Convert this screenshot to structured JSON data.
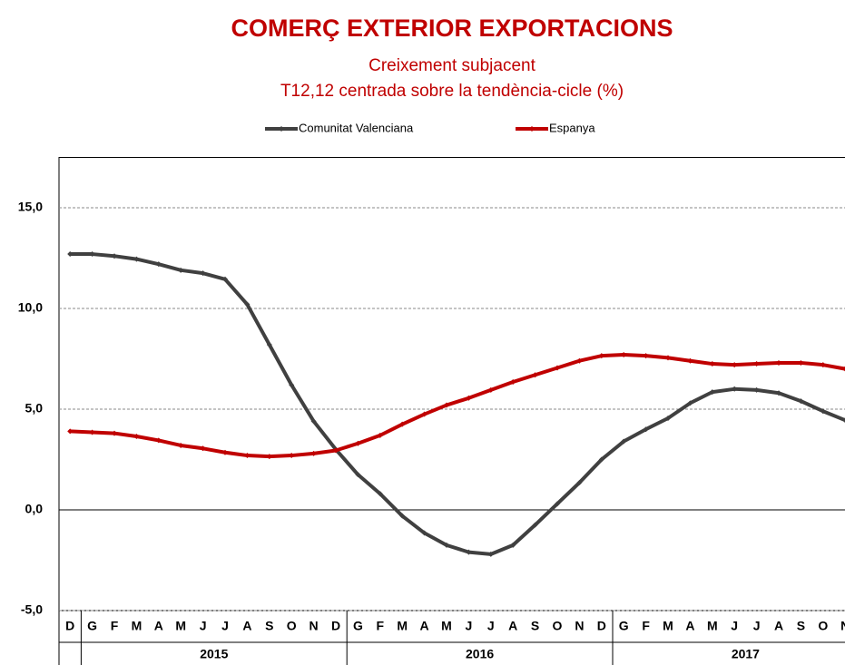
{
  "chart_data": {
    "type": "line",
    "title": "COMERÇ EXTERIOR EXPORTACIONS",
    "subtitle": [
      "Creixement  subjacent",
      "T12,12 centrada sobre la tendència-cicle (%)"
    ],
    "categories": [
      "D",
      "G",
      "F",
      "M",
      "A",
      "M",
      "J",
      "J",
      "A",
      "S",
      "O",
      "N",
      "D",
      "G",
      "F",
      "M",
      "A",
      "M",
      "J",
      "J",
      "A",
      "S",
      "O",
      "N",
      "D",
      "G",
      "F",
      "M",
      "A",
      "M",
      "J",
      "J",
      "A",
      "S",
      "O",
      "N"
    ],
    "years": [
      "2015",
      "2016",
      "2017"
    ],
    "series": [
      {
        "name": "Comunitat Valenciana",
        "color": "#404040",
        "values": [
          12.7,
          12.7,
          12.6,
          12.45,
          12.2,
          11.9,
          11.75,
          11.45,
          10.2,
          8.2,
          6.2,
          4.4,
          3.0,
          1.75,
          0.8,
          -0.3,
          -1.15,
          -1.75,
          -2.1,
          -2.2,
          -1.75,
          -0.75,
          0.3,
          1.35,
          2.5,
          3.4,
          4.0,
          4.55,
          5.3,
          5.85,
          6.0,
          5.95,
          5.8,
          5.4,
          4.9,
          4.45
        ]
      },
      {
        "name": "Espanya",
        "color": "#c00000",
        "values": [
          3.9,
          3.85,
          3.8,
          3.65,
          3.45,
          3.2,
          3.05,
          2.85,
          2.7,
          2.65,
          2.7,
          2.8,
          2.95,
          3.3,
          3.7,
          4.25,
          4.75,
          5.2,
          5.55,
          5.95,
          6.35,
          6.7,
          7.05,
          7.4,
          7.65,
          7.7,
          7.65,
          7.55,
          7.4,
          7.25,
          7.2,
          7.25,
          7.3,
          7.3,
          7.2,
          7.0
        ]
      }
    ],
    "ylim": [
      -5,
      17.5
    ],
    "yticks": [
      {
        "value": -5,
        "label": "-5,0"
      },
      {
        "value": 0,
        "label": "0,0"
      },
      {
        "value": 5,
        "label": "5,0"
      },
      {
        "value": 10,
        "label": "10,0"
      },
      {
        "value": 15,
        "label": "15,0"
      }
    ],
    "grid": true
  }
}
